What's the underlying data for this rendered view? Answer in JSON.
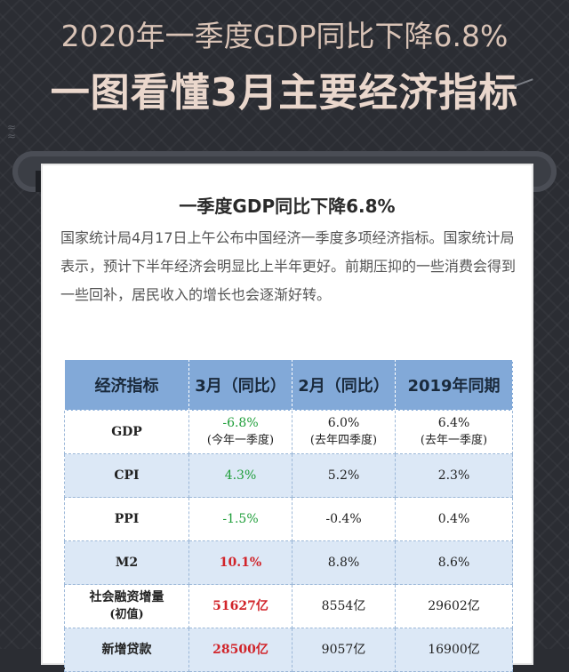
{
  "header": {
    "line1": "2020年一季度GDP同比下降6.8%",
    "line2": "一图看懂3月主要经济指标"
  },
  "card": {
    "title": "一季度GDP同比下降6.8%",
    "paragraph": "国家统计局4月17日上午公布中国经济一季度多项经济指标。国家统计局表示，预计下半年经济会明显比上半年更好。前期压抑的一些消费会得到一些回补，居民收入的增长也会逐渐好转。"
  },
  "table": {
    "headers": [
      "经济指标",
      "3月（同比）",
      "2月（同比）",
      "2019年同期"
    ],
    "rows": [
      {
        "name": "GDP",
        "name2": "",
        "c1": "-6.8%",
        "c1sub": "(今年一季度)",
        "c2": "6.0%",
        "c2sub": "(去年四季度)",
        "c3": "6.4%",
        "c3sub": "(去年一季度)"
      },
      {
        "name": "CPI",
        "name2": "",
        "c1": "4.3%",
        "c1sub": "",
        "c2": "5.2%",
        "c2sub": "",
        "c3": "2.3%",
        "c3sub": ""
      },
      {
        "name": "PPI",
        "name2": "",
        "c1": "-1.5%",
        "c1sub": "",
        "c2": "-0.4%",
        "c2sub": "",
        "c3": "0.4%",
        "c3sub": ""
      },
      {
        "name": "M2",
        "name2": "",
        "c1": "10.1%",
        "c1sub": "",
        "c2": "8.8%",
        "c2sub": "",
        "c3": "8.6%",
        "c3sub": ""
      },
      {
        "name": "社会融资增量",
        "name2": "(初值)",
        "c1": "51627亿",
        "c1sub": "",
        "c2": "8554亿",
        "c2sub": "",
        "c3": "29602亿",
        "c3sub": ""
      },
      {
        "name": "新增贷款",
        "name2": "",
        "c1": "28500亿",
        "c1sub": "",
        "c2": "9057亿",
        "c2sub": "",
        "c3": "16900亿",
        "c3sub": ""
      }
    ]
  },
  "colors": {
    "header_bg": "#82a9d8",
    "alt_row": "#dce8f6",
    "green": "#1f9e3a",
    "red": "#d1242a"
  }
}
